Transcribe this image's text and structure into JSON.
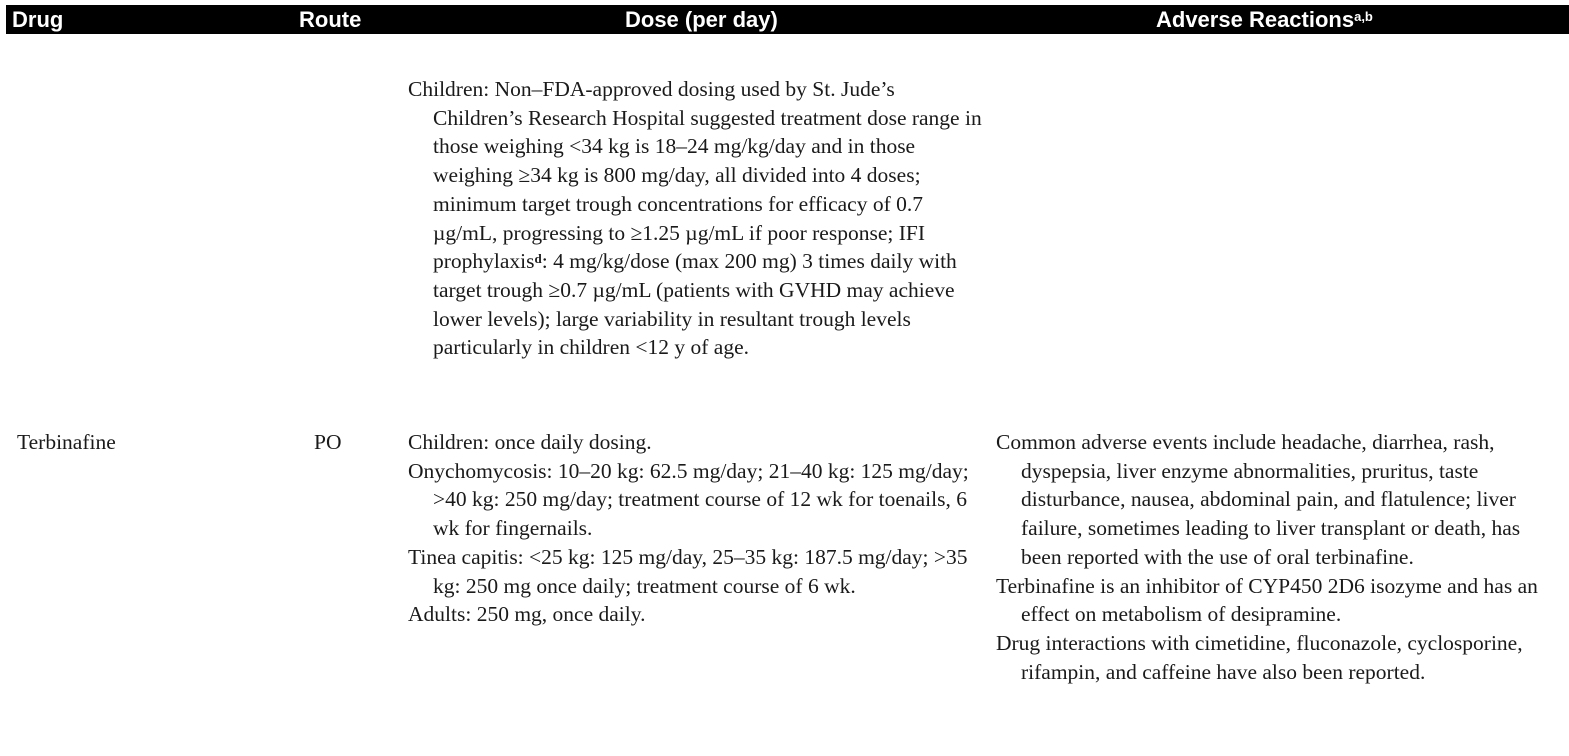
{
  "header": {
    "drug": "Drug",
    "route": "Route",
    "dose": "Dose (per day)",
    "adverse": "Adverse Reactions",
    "adverse_sup": "a,b"
  },
  "rows": [
    {
      "drug": "",
      "route": "",
      "dose": [
        {
          "before": "Children: Non–FDA-approved dosing used by St. Jude’s Children’s Research Hospital suggested treatment dose range in those weighing <34 kg is 18–24 mg/kg/day and in those weighing ≥34 kg is 800 mg/day, all divided into 4 doses; minimum target trough concentrations for efficacy of 0.7 µg/mL, progressing to ≥1.25 µg/mL if poor response; IFI prophylaxis",
          "sup": "d",
          "after": ": 4 mg/kg/dose (max 200 mg) 3 times daily with target trough ≥0.7 µg/mL (patients with GVHD may achieve lower levels); large variability in resultant trough levels particularly in children <12 y of age."
        }
      ],
      "adverse": []
    },
    {
      "drug": "Terbinafine",
      "route": "PO",
      "dose": [
        "Children: once daily dosing.",
        "Onychomycosis: 10–20 kg: 62.5 mg/day; 21–40 kg: 125 mg/day; >40 kg: 250 mg/day; treatment course of 12 wk for toenails, 6 wk for fingernails.",
        "Tinea capitis: <25 kg: 125 mg/day, 25–35 kg: 187.5 mg/day; >35 kg: 250 mg once daily; treatment course of 6 wk.",
        "Adults: 250 mg, once daily."
      ],
      "adverse": [
        "Common adverse events include headache, diarrhea, rash, dyspepsia, liver enzyme abnormalities, pruritus, taste disturbance, nausea, abdominal pain, and flatulence; liver failure, sometimes leading to liver transplant or death, has been reported with the use of oral terbinafine.",
        "Terbinafine is an inhibitor of CYP450 2D6 isozyme and has an effect on metabolism of desipramine.",
        "Drug interactions with cimetidine, fluconazole, cyclosporine, rifampin, and caffeine have also been reported."
      ]
    }
  ]
}
